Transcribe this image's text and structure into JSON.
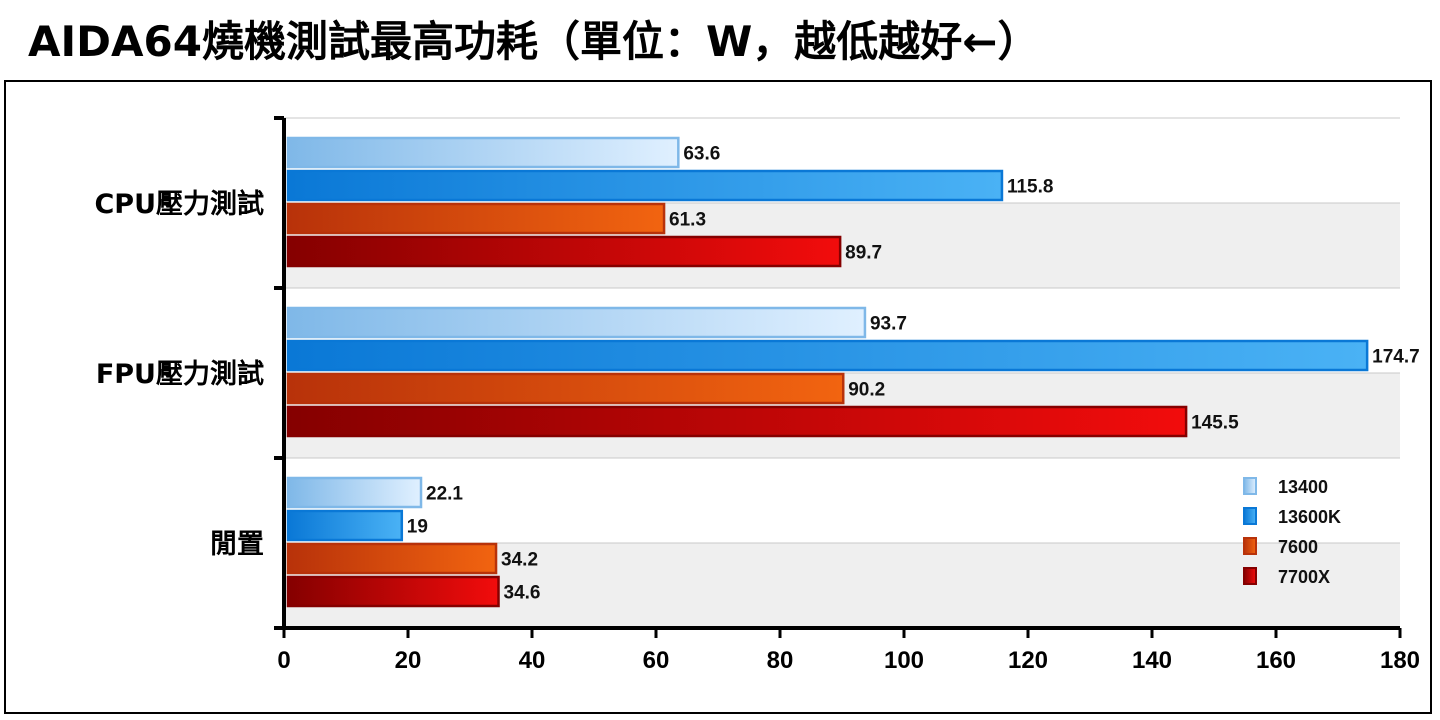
{
  "title": "AIDA64燒機測試最高功耗（單位：W，越低越好←）",
  "chart_data": {
    "type": "bar",
    "orientation": "horizontal",
    "categories": [
      "CPU壓力測試",
      "FPU壓力測試",
      "閒置"
    ],
    "series": [
      {
        "name": "13400",
        "values": [
          63.6,
          93.7,
          22.1
        ],
        "value_labels": [
          "63.6",
          "93.7",
          "22.1"
        ]
      },
      {
        "name": "13600K",
        "values": [
          115.8,
          174.7,
          19
        ],
        "value_labels": [
          "115.8",
          "174.7",
          "19"
        ]
      },
      {
        "name": "7600",
        "values": [
          61.3,
          90.2,
          34.2
        ],
        "value_labels": [
          "61.3",
          "90.2",
          "34.2"
        ]
      },
      {
        "name": "7700X",
        "values": [
          89.7,
          145.5,
          34.6
        ],
        "value_labels": [
          "89.7",
          "145.5",
          "34.6"
        ]
      }
    ],
    "xlim": [
      0,
      180
    ],
    "x_ticks": [
      0,
      20,
      40,
      60,
      80,
      100,
      120,
      140,
      160,
      180
    ],
    "legend_position": "bottom-right",
    "grid": true,
    "colors": {
      "13400": [
        "#7fb8e8",
        "#e0f0ff"
      ],
      "13600K": [
        "#0a78d6",
        "#4ab2f5"
      ],
      "7600": [
        "#b8320a",
        "#f26410"
      ],
      "7700X": [
        "#850000",
        "#f20c0c"
      ]
    }
  }
}
